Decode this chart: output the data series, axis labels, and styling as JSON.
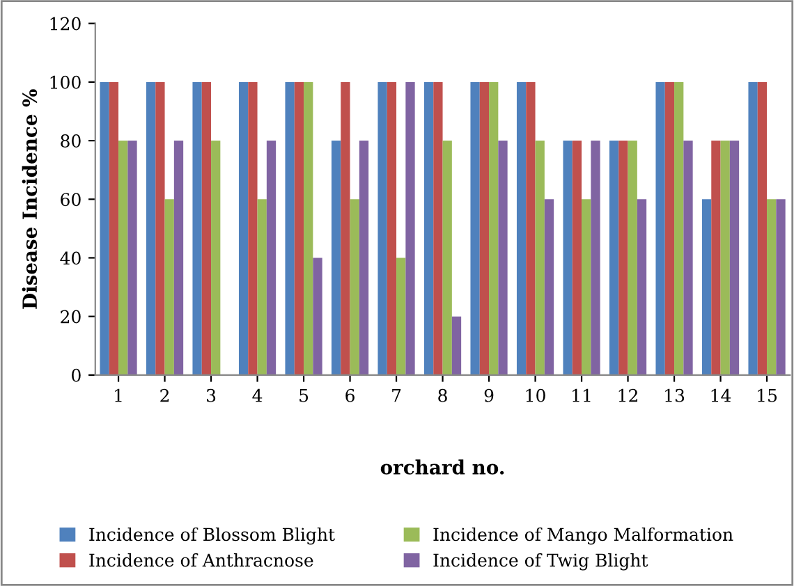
{
  "chart_data": {
    "type": "bar",
    "xlabel": "orchard no.",
    "ylabel": "Disease Incidence %",
    "categories": [
      "1",
      "2",
      "3",
      "4",
      "5",
      "6",
      "7",
      "8",
      "9",
      "10",
      "11",
      "12",
      "13",
      "14",
      "15"
    ],
    "series": [
      {
        "name": "Incidence of Blossom Blight",
        "color": "#4f81bd",
        "values": [
          100,
          100,
          100,
          100,
          100,
          80,
          100,
          100,
          100,
          100,
          80,
          80,
          100,
          60,
          100
        ]
      },
      {
        "name": "Incidence of Anthracnose",
        "color": "#c0504d",
        "values": [
          100,
          100,
          100,
          100,
          100,
          100,
          100,
          100,
          100,
          100,
          80,
          80,
          100,
          80,
          100
        ]
      },
      {
        "name": "Incidence of Mango Malformation",
        "color": "#9bbb59",
        "values": [
          80,
          60,
          80,
          60,
          100,
          60,
          40,
          80,
          100,
          80,
          60,
          80,
          100,
          80,
          60
        ]
      },
      {
        "name": "Incidence of Twig Blight",
        "color": "#8064a2",
        "values": [
          80,
          80,
          0,
          80,
          40,
          80,
          100,
          20,
          80,
          60,
          80,
          60,
          80,
          80,
          60
        ]
      }
    ],
    "ylim": [
      0,
      120
    ],
    "yticks": [
      0,
      20,
      40,
      60,
      80,
      100,
      120
    ],
    "grid": false,
    "legend": "bottom"
  }
}
